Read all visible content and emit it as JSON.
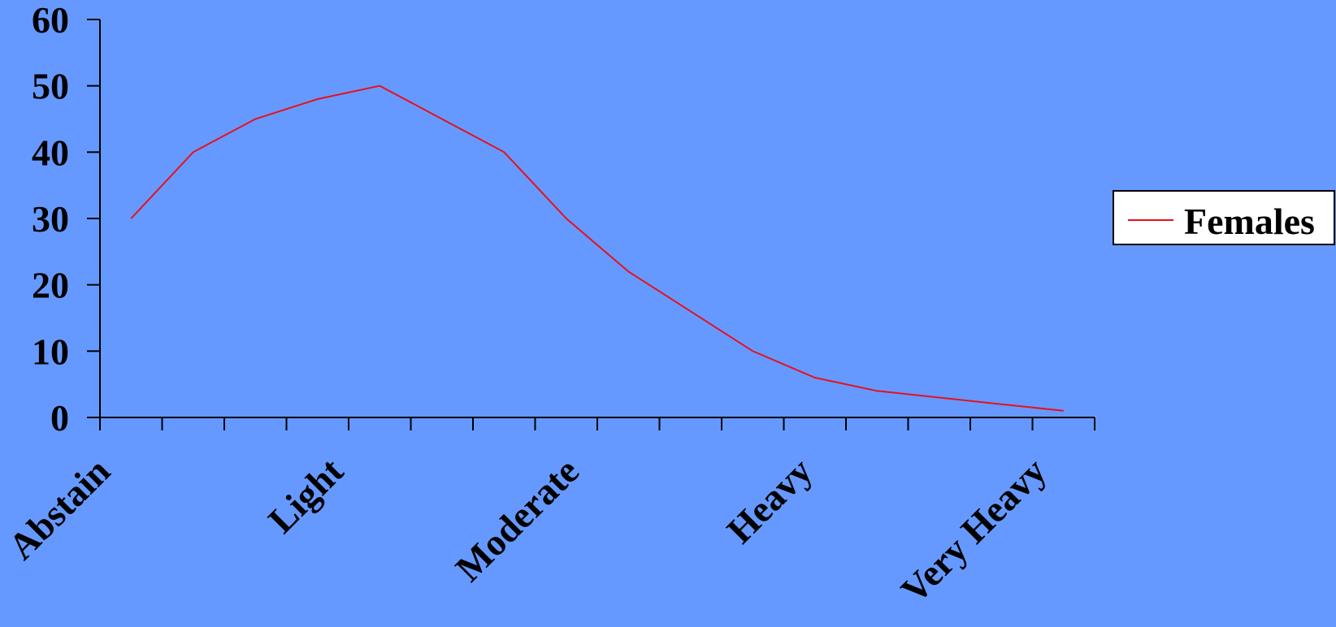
{
  "background_color": "#6699ff",
  "line_color": "#e8101a",
  "legend_background": "#ffffff",
  "chart_data": {
    "type": "line",
    "xlabel": "",
    "ylabel": "",
    "ylim": [
      0,
      60
    ],
    "yticks": [
      0,
      10,
      20,
      30,
      40,
      50,
      60
    ],
    "category_labels": [
      "Abstain",
      "Light",
      "Moderate",
      "Heavy",
      "Very Heavy"
    ],
    "x_tick_count": 17,
    "series": [
      {
        "name": "Females",
        "color": "#e8101a",
        "values": [
          30,
          40,
          45,
          48,
          50,
          45,
          40,
          30,
          22,
          16,
          10,
          6,
          4,
          3,
          2,
          1
        ]
      }
    ],
    "legend": {
      "position": "right",
      "entries": [
        "Females"
      ]
    },
    "grid": false
  }
}
